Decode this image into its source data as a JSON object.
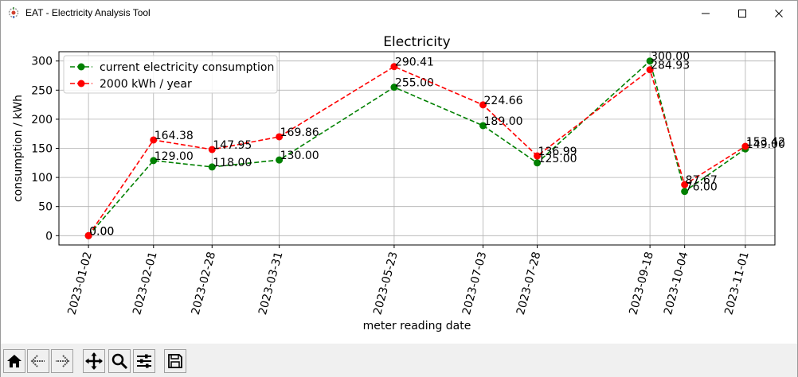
{
  "window": {
    "title": "EAT - Electricity Analysis Tool",
    "icon": "eat-app-icon",
    "controls": [
      "minimize-icon",
      "maximize-icon",
      "close-icon"
    ]
  },
  "chart_data": {
    "type": "line",
    "title": "Electricity",
    "xlabel": "meter reading date",
    "ylabel": "consumption / kWh",
    "x": [
      "2023-01-02",
      "2023-02-01",
      "2023-02-28",
      "2023-03-31",
      "2023-05-23",
      "2023-07-03",
      "2023-07-28",
      "2023-09-18",
      "2023-10-04",
      "2023-11-01"
    ],
    "yticks": [
      0,
      50,
      100,
      150,
      200,
      250,
      300
    ],
    "ylim": [
      -16,
      316
    ],
    "grid": true,
    "legend_position": "top-left",
    "series": [
      {
        "name": "current electricity consumption",
        "color": "#008000",
        "linestyle": "dashed",
        "marker": "circle",
        "values": [
          0,
          129,
          118,
          130,
          255,
          189,
          125,
          300,
          76,
          149
        ],
        "labels": [
          "0.00",
          "129.00",
          "118.00",
          "130.00",
          "255.00",
          "189.00",
          "125.00",
          "300.00",
          "76.00",
          "149.00"
        ]
      },
      {
        "name": "2000 kWh / year",
        "color": "#ff0000",
        "linestyle": "dashed",
        "marker": "circle",
        "values": [
          0,
          164.38,
          147.95,
          169.86,
          290.41,
          224.66,
          136.99,
          284.93,
          87.67,
          153.42
        ],
        "labels": [
          "0.00",
          "164.38",
          "147.95",
          "169.86",
          "290.41",
          "224.66",
          "136.99",
          "284.93",
          "87.67",
          "153.42"
        ]
      }
    ]
  },
  "toolbar": {
    "buttons": [
      "home-icon",
      "back-icon",
      "forward-icon",
      "pan-icon",
      "zoom-icon",
      "subplots-icon",
      "save-icon"
    ]
  }
}
